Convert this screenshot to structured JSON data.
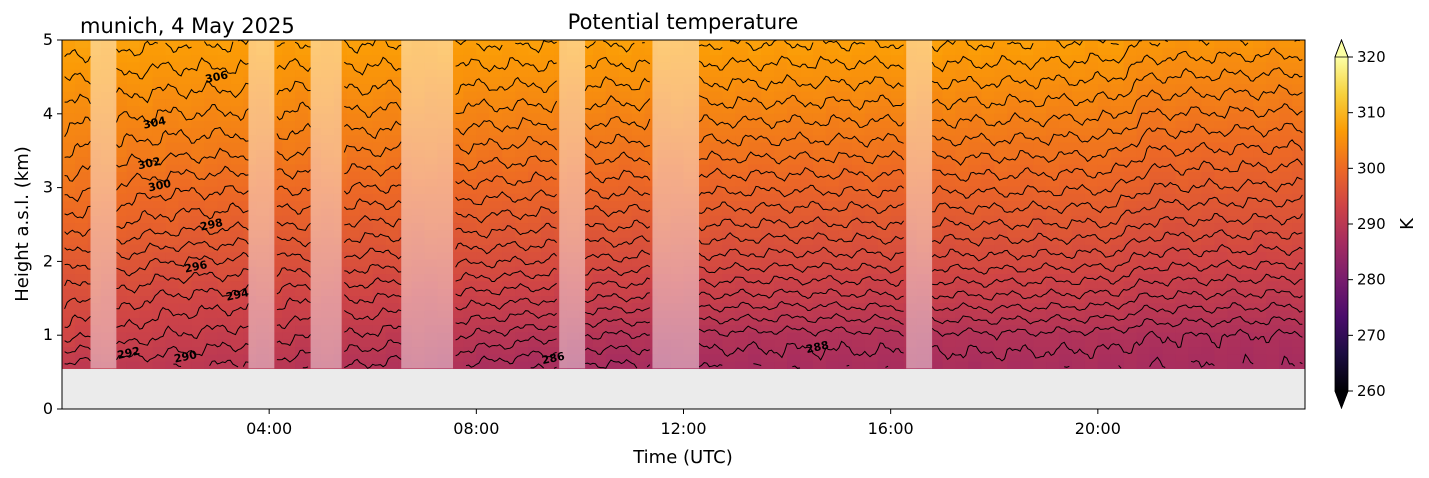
{
  "header": {
    "location_date": "munich, 4 May 2025",
    "title": "Potential temperature"
  },
  "chart_data": {
    "type": "heatmap",
    "title": "Potential temperature",
    "location_date": "munich, 4 May 2025",
    "xlabel": "Time (UTC)",
    "ylabel": "Height a.s.l. (km)",
    "x_unit": "hours UTC",
    "xlim": [
      0,
      24
    ],
    "ylim": [
      0,
      5
    ],
    "x_ticks": [
      4,
      8,
      12,
      16,
      20
    ],
    "x_tick_labels": [
      "04:00",
      "08:00",
      "12:00",
      "16:00",
      "20:00"
    ],
    "y_ticks": [
      0,
      1,
      2,
      3,
      4,
      5
    ],
    "y_tick_labels": [
      "0",
      "1",
      "2",
      "3",
      "4",
      "5"
    ],
    "colorbar": {
      "label": "K",
      "range": [
        260,
        320
      ],
      "ticks": [
        260,
        270,
        280,
        290,
        300,
        310,
        320
      ],
      "tick_labels": [
        "260",
        "270",
        "280",
        "290",
        "300",
        "310",
        "320"
      ],
      "extend": "both",
      "colormap": "inferno",
      "colors": [
        "#000004",
        "#1b0c41",
        "#4a0c6b",
        "#781c6d",
        "#a52c60",
        "#cf4446",
        "#ed6925",
        "#fb9b06",
        "#f7d13d",
        "#fcffa4"
      ]
    },
    "data_bottom_km": 0.55,
    "below_data_color": "#ebebeb",
    "contour_interval_K": 1,
    "labeled_contour_interval_K": 2,
    "contour_labels": [
      {
        "value": 306,
        "time_h": 3.0,
        "height_km": 4.45
      },
      {
        "value": 304,
        "time_h": 1.8,
        "height_km": 3.83
      },
      {
        "value": 302,
        "time_h": 1.7,
        "height_km": 3.28
      },
      {
        "value": 300,
        "time_h": 1.9,
        "height_km": 2.98
      },
      {
        "value": 298,
        "time_h": 2.9,
        "height_km": 2.45
      },
      {
        "value": 296,
        "time_h": 2.6,
        "height_km": 1.88
      },
      {
        "value": 294,
        "time_h": 3.4,
        "height_km": 1.5
      },
      {
        "value": 292,
        "time_h": 1.3,
        "height_km": 0.71
      },
      {
        "value": 290,
        "time_h": 2.4,
        "height_km": 0.66
      },
      {
        "value": 288,
        "time_h": 14.6,
        "height_km": 0.79
      },
      {
        "value": 286,
        "time_h": 9.5,
        "height_km": 0.64
      }
    ],
    "masked_periods_h": [
      [
        0.55,
        1.05
      ],
      [
        3.6,
        4.1
      ],
      [
        4.8,
        5.4
      ],
      [
        6.55,
        7.55
      ],
      [
        9.6,
        10.1
      ],
      [
        11.4,
        12.3
      ],
      [
        16.3,
        16.8
      ]
    ],
    "theta_profiles": {
      "height_km": [
        0.55,
        1.0,
        1.5,
        2.0,
        2.5,
        3.0,
        3.5,
        4.0,
        4.5,
        5.0
      ],
      "by_time": [
        {
          "time_h": 0.0,
          "theta_K": [
            290.5,
            293.5,
            295.5,
            297.5,
            299.5,
            301.5,
            303.0,
            304.6,
            306.2,
            307.8
          ]
        },
        {
          "time_h": 2.0,
          "theta_K": [
            290.2,
            292.0,
            293.8,
            296.0,
            298.5,
            300.3,
            302.4,
            304.0,
            305.6,
            307.2
          ]
        },
        {
          "time_h": 6.0,
          "theta_K": [
            288.7,
            290.8,
            293.0,
            295.5,
            297.8,
            300.0,
            302.0,
            303.8,
            305.5,
            307.2
          ]
        },
        {
          "time_h": 10.0,
          "theta_K": [
            286.6,
            289.0,
            292.0,
            294.8,
            297.2,
            299.4,
            301.5,
            303.5,
            305.4,
            307.2
          ]
        },
        {
          "time_h": 14.0,
          "theta_K": [
            287.2,
            288.6,
            291.6,
            294.4,
            296.9,
            299.2,
            301.4,
            303.4,
            305.3,
            307.2
          ]
        },
        {
          "time_h": 18.0,
          "theta_K": [
            287.3,
            288.8,
            291.8,
            294.6,
            297.0,
            299.3,
            301.4,
            303.4,
            305.3,
            307.2
          ]
        },
        {
          "time_h": 20.3,
          "theta_K": [
            287.2,
            288.6,
            291.6,
            294.4,
            296.9,
            299.1,
            301.2,
            303.2,
            305.1,
            307.0
          ]
        },
        {
          "time_h": 21.0,
          "theta_K": [
            287.0,
            288.1,
            290.8,
            293.4,
            295.8,
            298.0,
            300.0,
            302.0,
            304.0,
            306.0
          ]
        },
        {
          "time_h": 24.0,
          "theta_K": [
            287.0,
            287.9,
            290.6,
            293.2,
            295.6,
            297.8,
            299.8,
            301.8,
            303.8,
            305.8
          ]
        }
      ]
    }
  }
}
